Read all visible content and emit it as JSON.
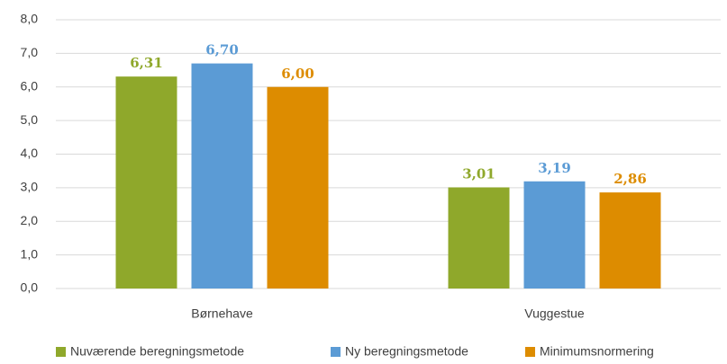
{
  "chart_data": {
    "type": "bar",
    "categories": [
      "Børnehave",
      "Vuggestue"
    ],
    "series": [
      {
        "name": "Nuværende beregningsmetode",
        "color": "#8fa82b",
        "values": [
          6.31,
          3.01
        ],
        "value_labels": [
          "6,31",
          "3,01"
        ]
      },
      {
        "name": "Ny beregningsmetode",
        "color": "#5b9bd5",
        "values": [
          6.7,
          3.19
        ],
        "value_labels": [
          "6,70",
          "3,19"
        ]
      },
      {
        "name": "Minimumsnormering",
        "color": "#dd8c00",
        "values": [
          6.0,
          2.86
        ],
        "value_labels": [
          "6,00",
          "2,86"
        ]
      }
    ],
    "ylim": [
      0,
      8
    ],
    "yticks": [
      {
        "value": 0,
        "label": "0,0"
      },
      {
        "value": 1,
        "label": "1,0"
      },
      {
        "value": 2,
        "label": "2,0"
      },
      {
        "value": 3,
        "label": "3,0"
      },
      {
        "value": 4,
        "label": "4,0"
      },
      {
        "value": 5,
        "label": "5,0"
      },
      {
        "value": 6,
        "label": "6,0"
      },
      {
        "value": 7,
        "label": "7,0"
      },
      {
        "value": 8,
        "label": "8,0"
      }
    ],
    "grid": true,
    "legend": "bottom"
  }
}
